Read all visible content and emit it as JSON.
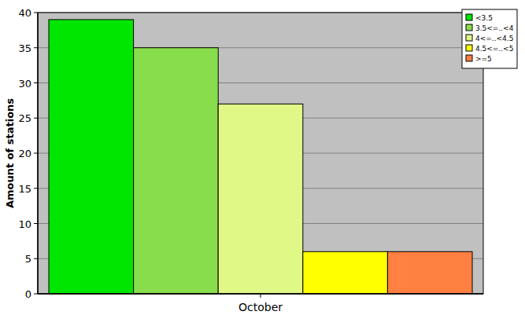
{
  "chart_data": {
    "type": "bar",
    "y_label": "Amount of stations",
    "categories": [
      "October"
    ],
    "series": [
      {
        "name": "<3.5",
        "color": "#00e600",
        "values": [
          39
        ]
      },
      {
        "name": "3.5<=..<4",
        "color": "#88dd4c",
        "values": [
          35
        ]
      },
      {
        "name": "4<=..<4.5",
        "color": "#e0f986",
        "values": [
          27
        ]
      },
      {
        "name": "4.5<=..<5",
        "color": "#ffff00",
        "values": [
          6
        ]
      },
      {
        "name": ">=5",
        "color": "#ff8040",
        "values": [
          6
        ]
      }
    ],
    "ylim": [
      0,
      40
    ],
    "yticks": [
      0,
      5,
      10,
      15,
      20,
      25,
      30,
      35,
      40
    ],
    "grid": true,
    "legend": "top-right"
  }
}
